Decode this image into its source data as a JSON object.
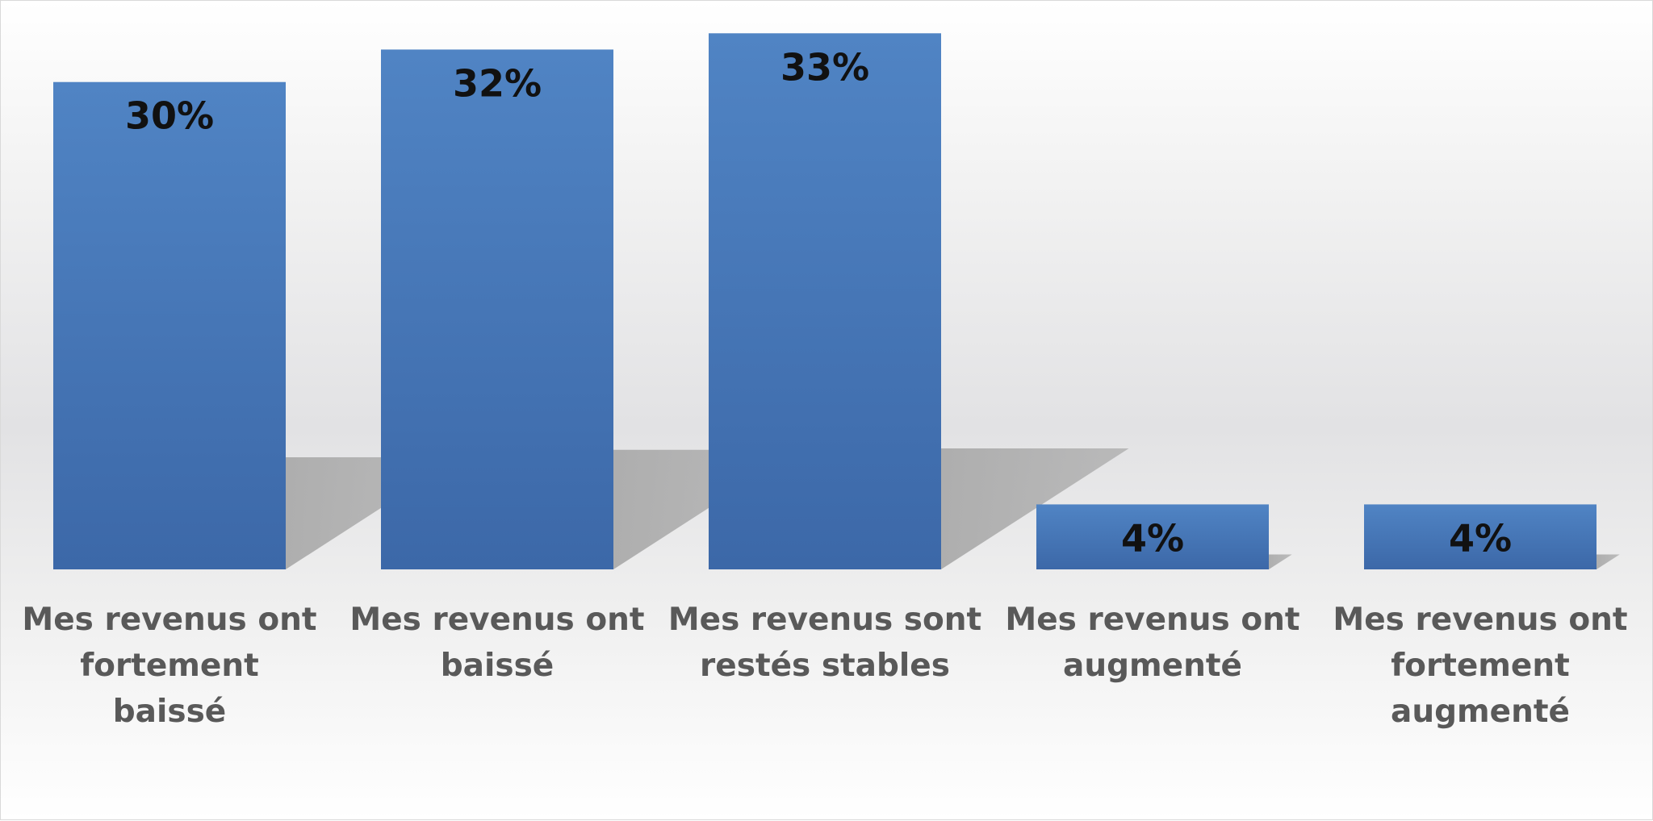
{
  "chart_data": {
    "type": "bar",
    "categories": [
      [
        "Mes revenus ont",
        "fortement",
        "baissé"
      ],
      [
        "Mes revenus ont",
        "baissé"
      ],
      [
        "Mes revenus sont",
        "restés stables"
      ],
      [
        "Mes revenus ont",
        "augmenté"
      ],
      [
        "Mes revenus ont",
        "fortement",
        "augmenté"
      ]
    ],
    "values": [
      30,
      32,
      33,
      4,
      4
    ],
    "value_labels": [
      "30%",
      "32%",
      "33%",
      "4%",
      "4%"
    ],
    "title": "",
    "xlabel": "",
    "ylabel": "",
    "ylim": [
      0,
      35
    ],
    "grid": false,
    "legend": "none",
    "colors": {
      "bar_top": "#5084c4",
      "bar_bottom": "#3c68a8",
      "shadow": "#ababab",
      "value_text": "#111111",
      "category_text": "#595959"
    }
  }
}
